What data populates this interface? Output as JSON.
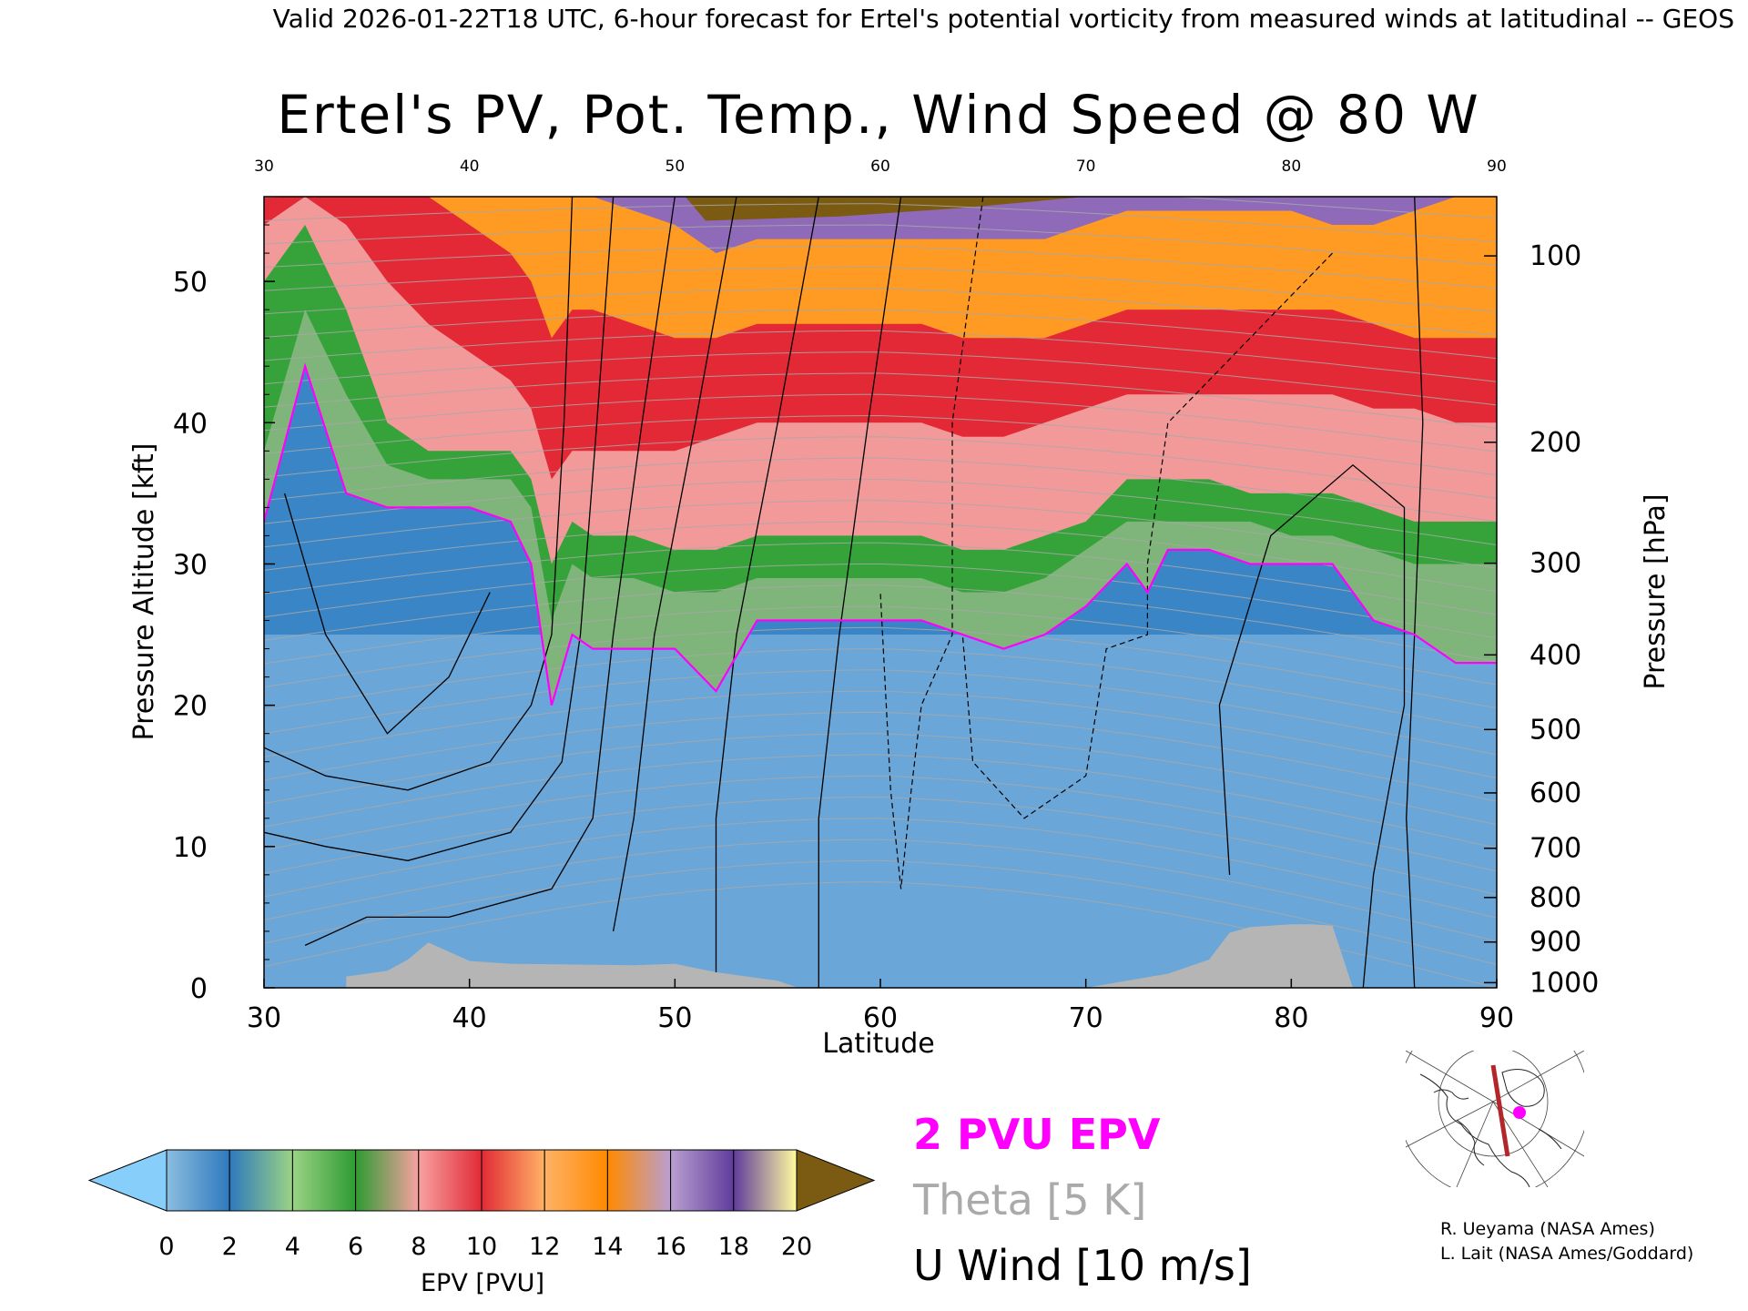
{
  "header": {
    "line": "Valid 2026-01-22T18 UTC, 6-hour forecast for Ertel's potential vorticity from measured winds at latitudinal -- GEOS"
  },
  "chart_data": {
    "type": "heatmap",
    "title": "Ertel's PV, Pot. Temp., Wind Speed @ 80 W",
    "xlabel": "Latitude",
    "ylabel": "Pressure Altitude [kft]",
    "y2label": "Pressure [hPa]",
    "xlim": [
      30,
      90
    ],
    "ylim": [
      0,
      56
    ],
    "x_ticks": [
      30,
      40,
      50,
      60,
      70,
      80,
      90
    ],
    "x_tick_labels": [
      "30",
      "40",
      "50",
      "60",
      "70",
      "80",
      "90"
    ],
    "top_tick_labels": [
      "30",
      "40",
      "50",
      "60",
      "70",
      "80",
      "90"
    ],
    "y_ticks": [
      0,
      10,
      20,
      30,
      40,
      50
    ],
    "y_tick_labels": [
      "0",
      "10",
      "20",
      "30",
      "40",
      "50"
    ],
    "pressure_ticks": [
      {
        "hpa": 1000,
        "label": "1000"
      },
      {
        "hpa": 900,
        "label": "900"
      },
      {
        "hpa": 800,
        "label": "800"
      },
      {
        "hpa": 700,
        "label": "700"
      },
      {
        "hpa": 600,
        "label": "600"
      },
      {
        "hpa": 500,
        "label": "500"
      },
      {
        "hpa": 400,
        "label": "400"
      },
      {
        "hpa": 300,
        "label": "300"
      },
      {
        "hpa": 200,
        "label": "200"
      },
      {
        "hpa": 100,
        "label": "100"
      }
    ],
    "epv_boundaries_kft": {
      "lat": [
        30,
        32,
        34,
        36,
        38,
        40,
        42,
        43,
        44,
        45,
        46,
        48,
        50,
        52,
        54,
        56,
        58,
        60,
        62,
        64,
        66,
        68,
        70,
        72,
        73,
        74,
        76,
        78,
        80,
        82,
        84,
        86,
        88,
        90
      ],
      "pv2": [
        33,
        44,
        35,
        34,
        34,
        34,
        33,
        30,
        20,
        25,
        24,
        24,
        24,
        21,
        26,
        26,
        26,
        26,
        26,
        25,
        24,
        25,
        27,
        30,
        28,
        31,
        31,
        30,
        30,
        30,
        26,
        25,
        23,
        23
      ],
      "pv3": [
        38,
        48,
        42,
        37,
        36,
        36,
        36,
        34,
        26,
        30,
        29,
        29,
        28,
        28,
        29,
        29,
        29,
        29,
        29,
        28,
        28,
        29,
        31,
        33,
        33,
        33,
        33,
        33,
        32,
        32,
        31,
        30,
        30,
        30
      ],
      "pv6": [
        50,
        54,
        48,
        40,
        38,
        38,
        38,
        36,
        30,
        33,
        32,
        32,
        31,
        31,
        32,
        32,
        32,
        32,
        32,
        31,
        31,
        32,
        33,
        36,
        36,
        36,
        36,
        35,
        35,
        35,
        34,
        33,
        33,
        33
      ],
      "pv9": [
        54,
        56,
        54,
        50,
        47,
        45,
        43,
        41,
        36,
        38,
        38,
        38,
        38,
        39,
        40,
        40,
        40,
        40,
        40,
        39,
        39,
        40,
        41,
        42,
        42,
        42,
        42,
        42,
        42,
        42,
        41,
        41,
        40,
        40
      ],
      "pv12": [
        56,
        56,
        56,
        56,
        56,
        54,
        52,
        50,
        46,
        48,
        48,
        47,
        46,
        46,
        47,
        47,
        47,
        47,
        47,
        46,
        46,
        46,
        47,
        48,
        48,
        48,
        48,
        48,
        48,
        48,
        47,
        46,
        46,
        46
      ],
      "pv15": [
        56,
        56,
        56,
        56,
        56,
        56,
        56,
        56,
        56,
        56,
        56,
        55,
        54,
        52,
        53,
        53,
        53,
        53,
        53,
        53,
        53,
        53,
        54,
        55,
        55,
        55,
        55,
        55,
        55,
        54,
        54,
        55,
        56,
        56
      ]
    },
    "surface_kft": {
      "lat": [
        34,
        36,
        37,
        38,
        40,
        42,
        48,
        50,
        52,
        55,
        56,
        60,
        70,
        74,
        76,
        77,
        78,
        80,
        81,
        82,
        83
      ],
      "height": [
        0.8,
        1.2,
        2.0,
        3.2,
        1.9,
        1.7,
        1.6,
        1.7,
        1.1,
        0.5,
        0,
        0,
        0,
        1.0,
        2.0,
        3.9,
        4.3,
        4.5,
        4.5,
        4.4,
        0
      ]
    },
    "epv_2pvu_color": "#ff00ff",
    "theta_color": "#a8a8a8",
    "wind_color": "#000000"
  },
  "colorbar": {
    "label": "EPV [PVU]",
    "tick_labels": [
      "0",
      "2",
      "4",
      "6",
      "8",
      "10",
      "12",
      "14",
      "16",
      "18",
      "20"
    ],
    "under_color": "#87cefa",
    "over_color": "#7b5a12",
    "colors": [
      "#8bbde0",
      "#2f79bd",
      "#9ad384",
      "#2e9b32",
      "#f7a1a1",
      "#e12b36",
      "#ffb266",
      "#ff8a00",
      "#b99fd0",
      "#5f3c9c",
      "#fffba0"
    ]
  },
  "legend": {
    "epv": "2 PVU EPV",
    "epv_color": "#ff00ff",
    "theta": "Theta [5 K]",
    "theta_color": "#aaaaaa",
    "wind": "U Wind [10 m/s]",
    "wind_color": "#000000"
  },
  "credits": {
    "line1": "R. Ueyama (NASA Ames)",
    "line2": "L. Lait (NASA Ames/Goddard)"
  }
}
